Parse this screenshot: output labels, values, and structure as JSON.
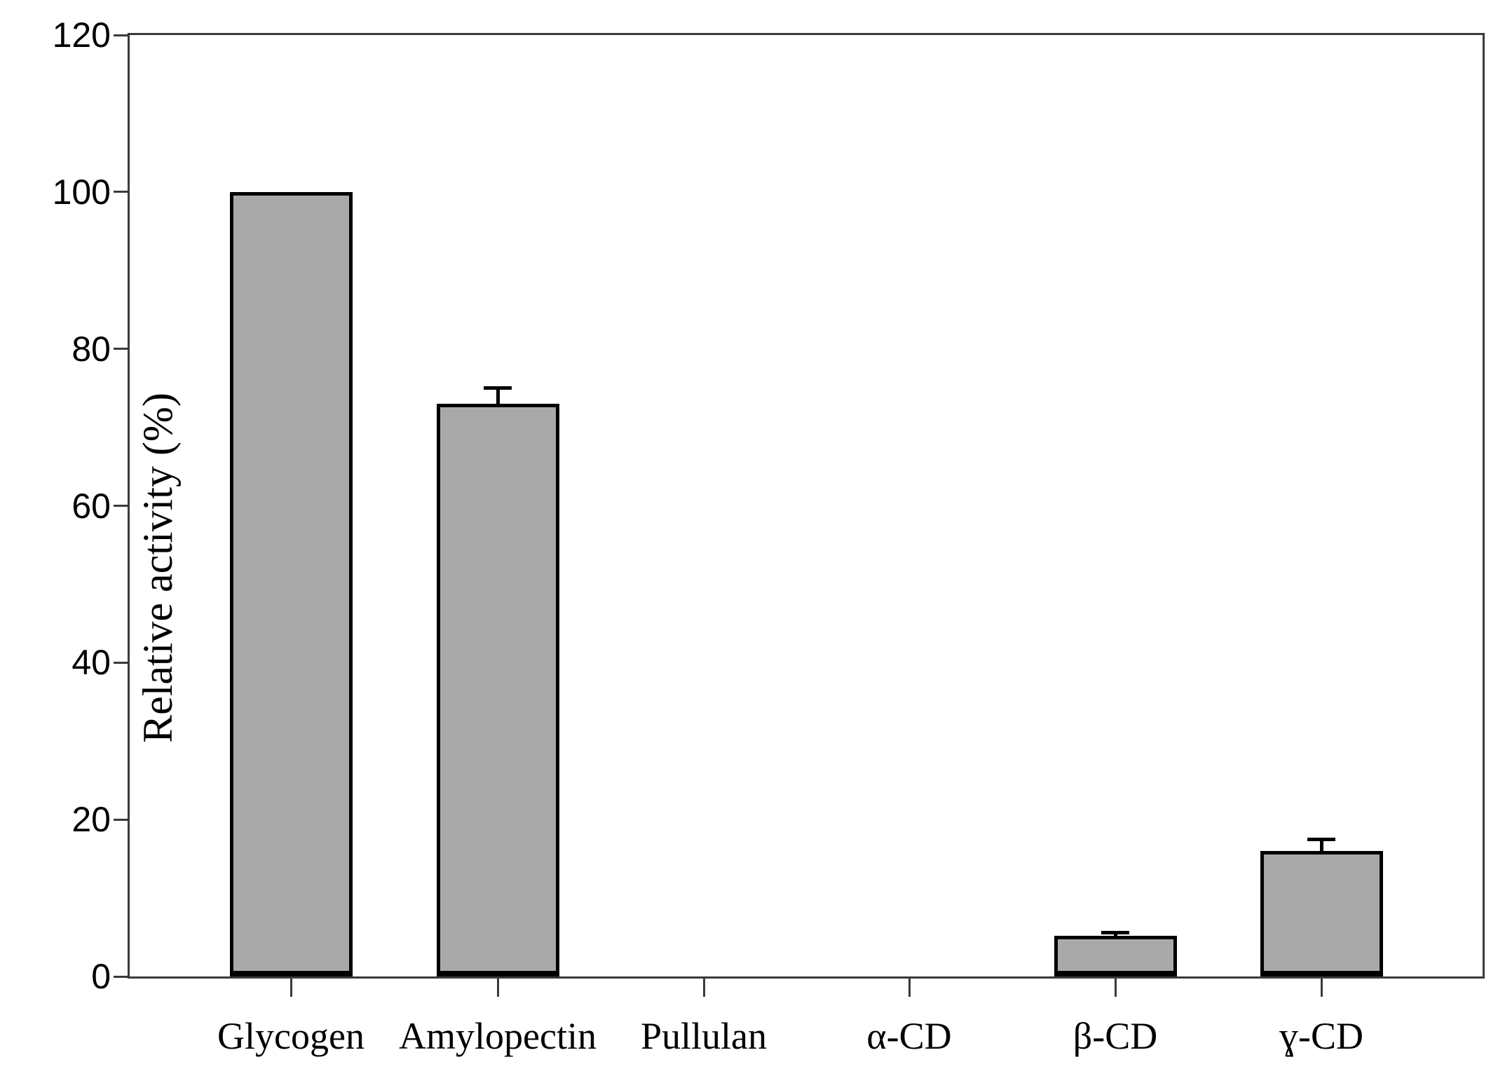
{
  "chart_data": {
    "type": "bar",
    "title": "",
    "xlabel": "",
    "ylabel": "Relative activity (%)",
    "categories": [
      "Glycogen",
      "Amylopectin",
      "Pullulan",
      "α-CD",
      "β-CD",
      "ɣ-CD"
    ],
    "values": [
      100,
      73,
      0,
      0,
      5.2,
      16
    ],
    "errors_plus": [
      0,
      2.2,
      0,
      0,
      0.6,
      1.7
    ],
    "ylim": [
      0,
      120
    ],
    "yticks": [
      0,
      20,
      40,
      60,
      80,
      100,
      120
    ],
    "grid": false,
    "legend": false,
    "frame_box": true,
    "bar_fill_color": "#a9a9a9",
    "bar_border_color": "#000000",
    "axis_color": "#3a3a3a",
    "text_color": "#000000"
  }
}
